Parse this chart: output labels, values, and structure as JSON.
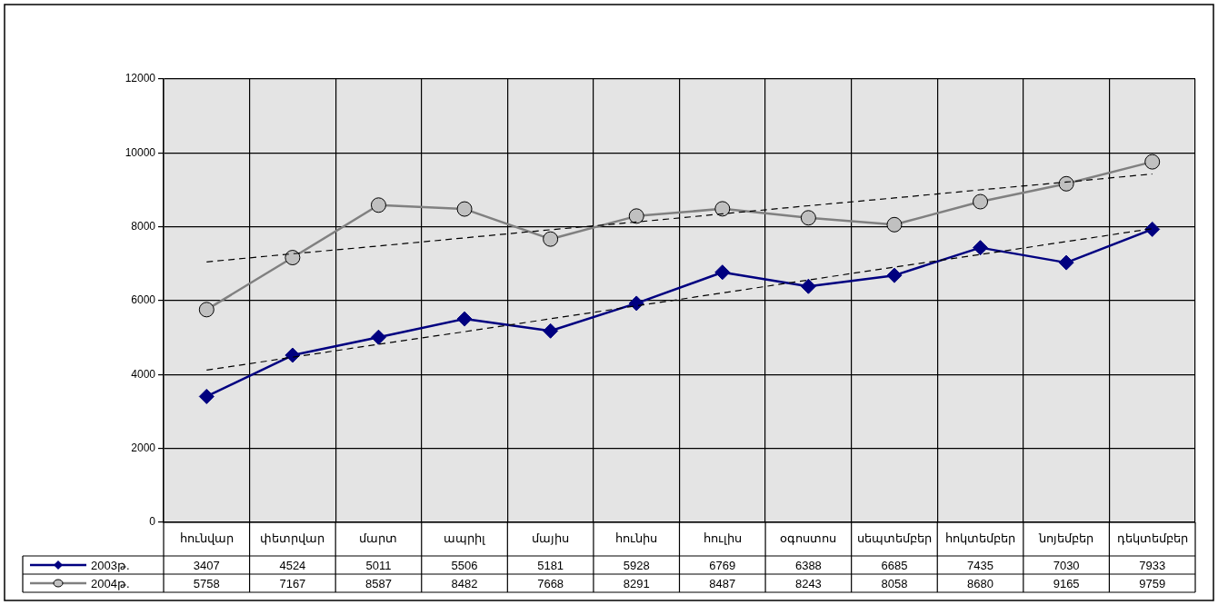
{
  "chart_data": {
    "type": "line",
    "categories": [
      "հունվար",
      "փետրվար",
      "մարտ",
      "ապրիլ",
      "մայիս",
      "հունիս",
      "հուլիս",
      "օգոստոս",
      "սեպտեմբեր",
      "հոկտեմբեր",
      "նոյեմբեր",
      "դեկտեմբեր"
    ],
    "series": [
      {
        "name": "2003թ.",
        "color": "#000080",
        "marker": "diamond",
        "values": [
          3407,
          4524,
          5011,
          5506,
          5181,
          5928,
          6769,
          6388,
          6685,
          7435,
          7030,
          7933
        ],
        "value_labels": [
          "3407",
          "4524",
          "5011",
          "5506",
          "5181",
          "5928",
          "6769",
          "6388",
          "6685",
          "7435",
          "7030",
          "7933"
        ]
      },
      {
        "name": "2004թ.",
        "color": "#808080",
        "marker": "circle",
        "values": [
          5758,
          7167,
          8587,
          8482,
          7668,
          8291,
          8487,
          8243,
          8058,
          8680,
          9165,
          9759
        ],
        "value_labels": [
          "5758",
          "7167",
          "8587",
          "8482",
          "7668",
          "8291",
          "8487",
          "8243",
          "8058",
          "8680",
          "9165",
          "9759"
        ]
      },
      {
        "type": "line",
        "color": "#000000",
        "marker": "none",
        "line_style": "dashed",
        "x": [
          "հունվար",
          "փետրվար",
          "մարտ",
          "ապրիլ",
          "մայիս",
          "հունիս",
          "հուլիս",
          "օգոստոս",
          "սեպտեմբեր",
          "հոկտեմբեր",
          "նոյեմբեր",
          "դեկտեմբեր"
        ],
        "values": [
          4120,
          4470,
          4820,
          5160,
          5510,
          5860,
          6210,
          6560,
          6910,
          7250,
          7600,
          7950
        ]
      },
      {
        "type": "line",
        "color": "#000000",
        "marker": "none",
        "line_style": "dashed",
        "x": [
          "հունվար",
          "փետրվար",
          "մարտ",
          "ապրիլ",
          "մայիս",
          "հունիս",
          "հուլիս",
          "օգոստոս",
          "սեպտեմբեր",
          "հոկտեմբեր",
          "նոյեմբեր",
          "դեկտեմբեր"
        ],
        "values": [
          7050,
          7270,
          7480,
          7700,
          7920,
          8130,
          8350,
          8570,
          8780,
          9000,
          9210,
          9430
        ]
      }
    ],
    "ylim": [
      0,
      12000
    ],
    "yticks": [
      0,
      2000,
      4000,
      6000,
      8000,
      10000,
      12000
    ],
    "grid": true,
    "legend": "bottom"
  }
}
